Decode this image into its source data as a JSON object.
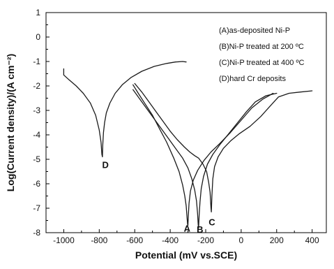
{
  "chart_data": {
    "type": "line",
    "xlabel": "Potential (mV vs.SCE)",
    "ylabel": "Log(Current density)/(A cm⁻²)",
    "xlim": [
      -1100,
      480
    ],
    "ylim": [
      -8,
      1
    ],
    "xticks": [
      -1000,
      -800,
      -600,
      -400,
      -200,
      0,
      200,
      400
    ],
    "yticks": [
      -8,
      -7,
      -6,
      -5,
      -4,
      -3,
      -2,
      -1,
      0,
      1
    ],
    "legend_position": "top-right",
    "legend": [
      "(A)as-deposited Ni-P",
      "(B)Ni-P treated at 200 ºC",
      "(C)Ni-P treated at 400 ºC",
      "(D)hard Cr deposits"
    ],
    "series": [
      {
        "label": "D",
        "x": [
          -1000,
          -1000,
          -970,
          -930,
          -890,
          -850,
          -820,
          -800,
          -790,
          -785,
          -782,
          -780,
          -776,
          -770,
          -760,
          -740,
          -710,
          -670,
          -620,
          -560,
          -490,
          -420,
          -370,
          -330,
          -310
        ],
        "y": [
          -1.3,
          -1.55,
          -1.75,
          -2.0,
          -2.3,
          -2.7,
          -3.2,
          -3.8,
          -4.3,
          -4.8,
          -4.9,
          -4.4,
          -3.9,
          -3.5,
          -3.1,
          -2.7,
          -2.3,
          -1.95,
          -1.65,
          -1.4,
          -1.2,
          -1.08,
          -1.02,
          -1.0,
          -1.02
        ]
      },
      {
        "label": "A",
        "x": [
          -610,
          -580,
          -540,
          -500,
          -460,
          -420,
          -380,
          -350,
          -330,
          -318,
          -310,
          -305,
          -302,
          -300,
          -298,
          -294,
          -286,
          -270,
          -245,
          -210,
          -170,
          -120,
          -60,
          0,
          60,
          120,
          180
        ],
        "y": [
          -1.95,
          -2.3,
          -2.75,
          -3.2,
          -3.75,
          -4.3,
          -4.95,
          -5.5,
          -6.05,
          -6.5,
          -6.9,
          -7.4,
          -7.65,
          -7.7,
          -7.3,
          -6.8,
          -6.3,
          -5.85,
          -5.45,
          -5.05,
          -4.7,
          -4.35,
          -3.9,
          -3.4,
          -2.9,
          -2.55,
          -2.3
        ]
      },
      {
        "label": "B",
        "x": [
          -610,
          -570,
          -530,
          -490,
          -450,
          -410,
          -370,
          -330,
          -300,
          -278,
          -262,
          -252,
          -246,
          -242,
          -240,
          -237,
          -232,
          -225,
          -212,
          -190,
          -160,
          -120,
          -70,
          -20,
          30,
          80,
          140,
          200
        ],
        "y": [
          -2.15,
          -2.55,
          -2.95,
          -3.35,
          -3.75,
          -4.15,
          -4.55,
          -4.95,
          -5.35,
          -5.8,
          -6.25,
          -6.7,
          -7.2,
          -7.7,
          -7.8,
          -7.3,
          -6.75,
          -6.2,
          -5.7,
          -5.2,
          -4.8,
          -4.4,
          -3.95,
          -3.5,
          -3.05,
          -2.65,
          -2.4,
          -2.3
        ]
      },
      {
        "label": "C",
        "x": [
          -600,
          -560,
          -520,
          -480,
          -440,
          -400,
          -360,
          -320,
          -290,
          -262,
          -240,
          -215,
          -195,
          -183,
          -175,
          -170,
          -168,
          -165,
          -160,
          -150,
          -130,
          -100,
          -60,
          -10,
          50,
          110,
          160,
          210,
          270,
          330,
          400
        ],
        "y": [
          -1.9,
          -2.25,
          -2.65,
          -3.05,
          -3.45,
          -3.85,
          -4.2,
          -4.5,
          -4.7,
          -4.85,
          -4.95,
          -5.2,
          -5.5,
          -5.95,
          -6.35,
          -7.0,
          -7.15,
          -6.5,
          -5.8,
          -5.3,
          -4.9,
          -4.55,
          -4.25,
          -3.95,
          -3.65,
          -3.25,
          -2.85,
          -2.45,
          -2.3,
          -2.25,
          -2.2
        ]
      }
    ],
    "curve_labels": [
      {
        "text": "D",
        "x": -765,
        "y": -5.35
      },
      {
        "text": "A",
        "x": -305,
        "y": -7.95
      },
      {
        "text": "B",
        "x": -232,
        "y": -8.0
      },
      {
        "text": "C",
        "x": -165,
        "y": -7.7
      }
    ]
  }
}
